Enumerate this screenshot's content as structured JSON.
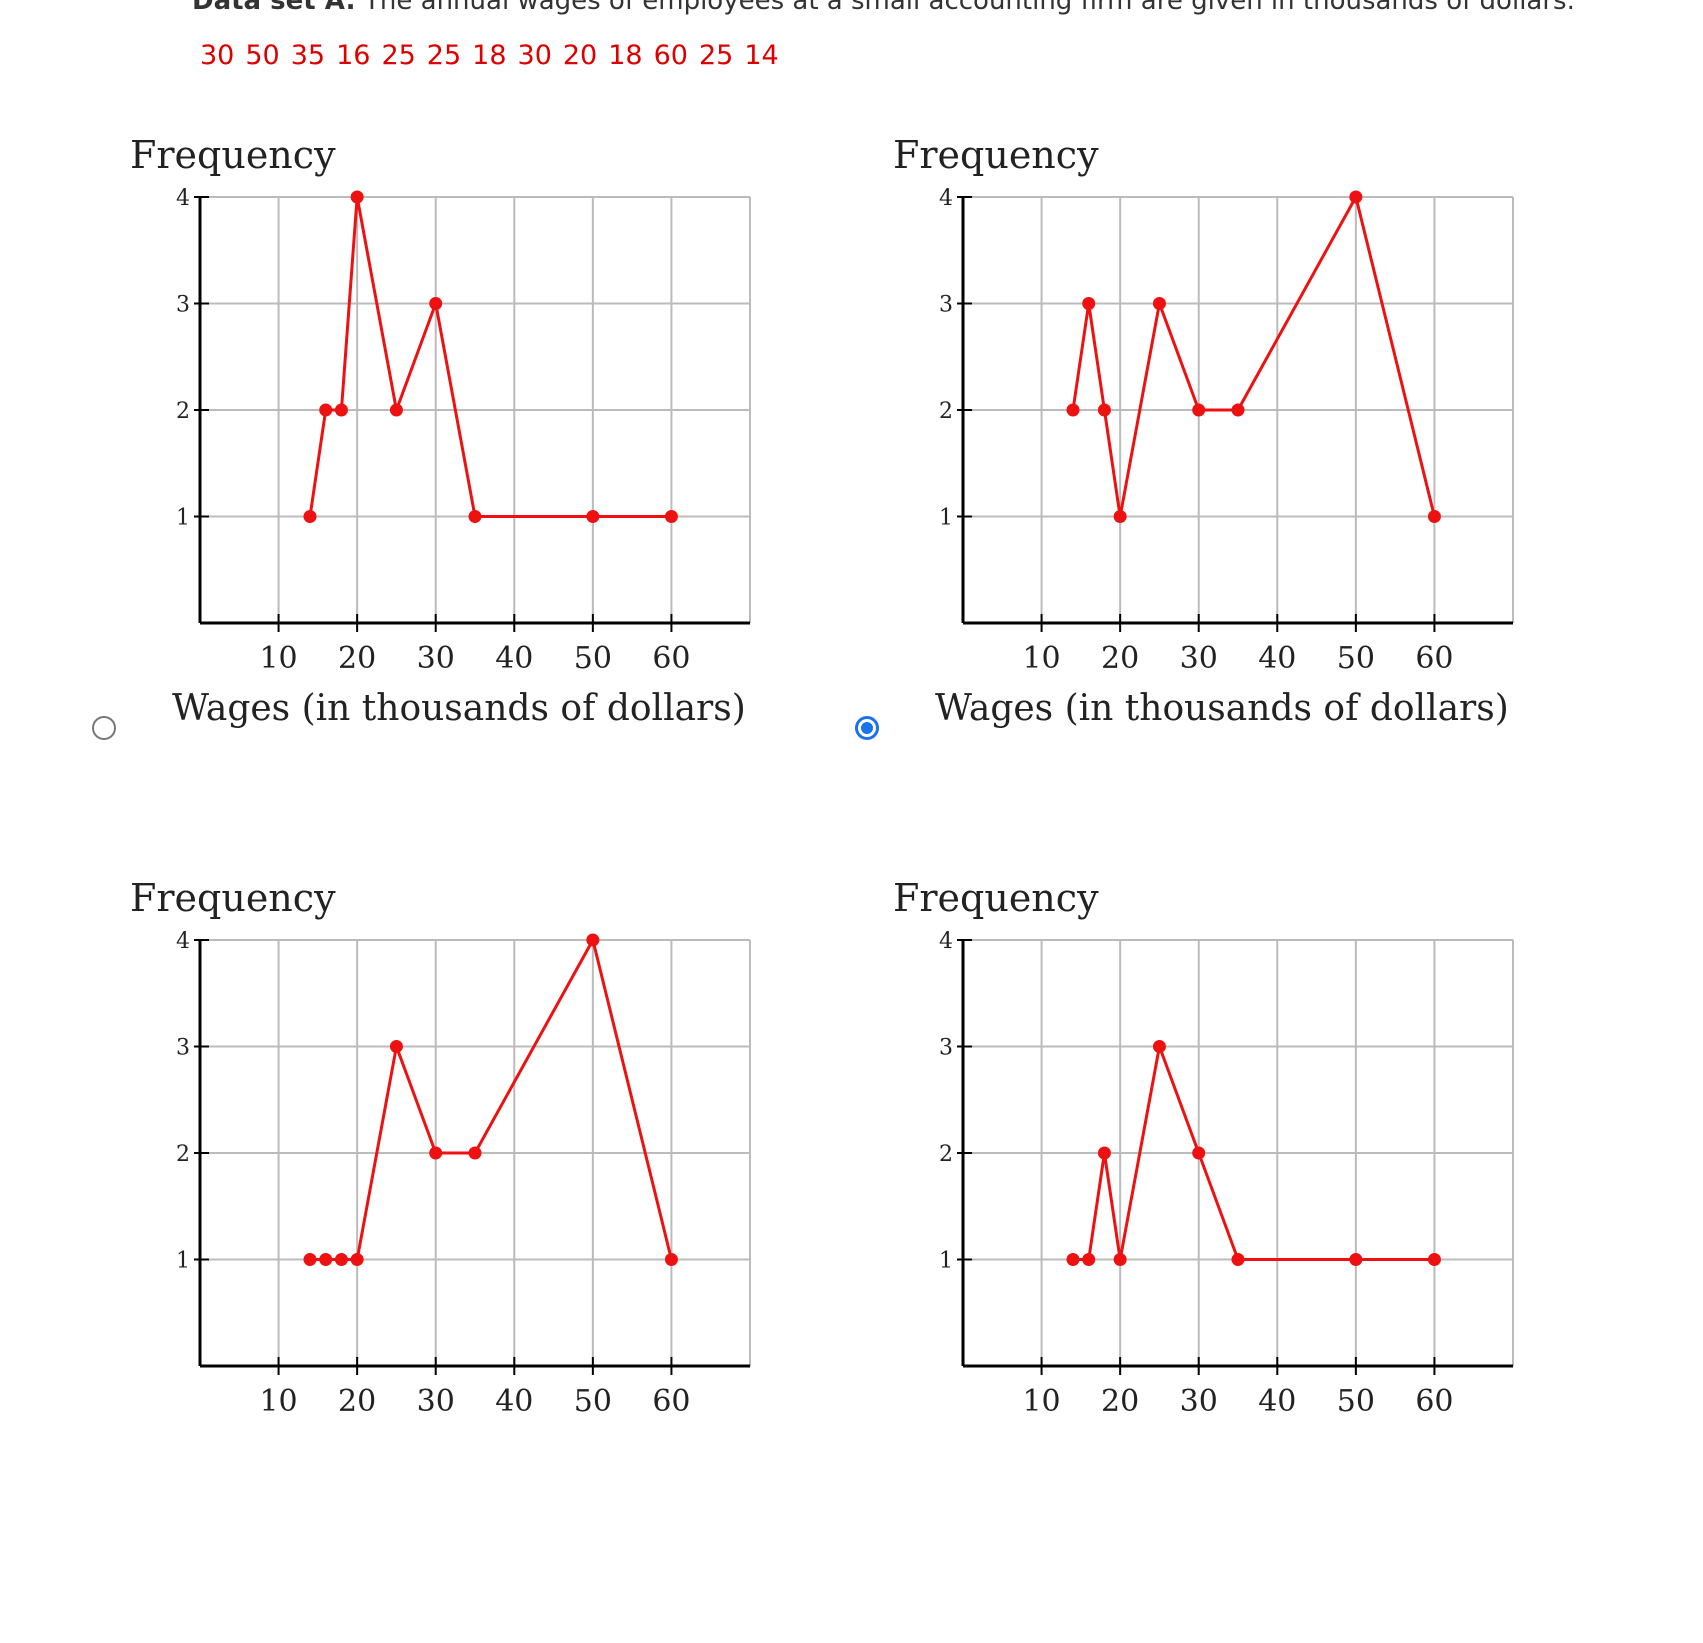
{
  "problem": {
    "label": "Data set A:",
    "text": "The annual wages of employees at a small accounting firm are given in thousands of dollars.",
    "values": [
      "30",
      "50",
      "35",
      "16",
      "25",
      "25",
      "18",
      "30",
      "20",
      "18",
      "60",
      "25",
      "14"
    ]
  },
  "selected_option": 2,
  "colors": {
    "line": "#ee1111",
    "grid": "#bbbbbb",
    "axis": "#000000",
    "radio": "#1a73e8"
  },
  "chart_data": [
    {
      "type": "line",
      "option": 1,
      "title": "",
      "ylabel": "Frequency",
      "xlabel": "Wages (in thousands of dollars)",
      "x_ticks": [
        10,
        20,
        30,
        40,
        50,
        60
      ],
      "y_ticks": [
        1,
        2,
        3,
        4
      ],
      "xlim": [
        0,
        70
      ],
      "ylim": [
        0,
        4
      ],
      "grid": true,
      "series": [
        {
          "x": [
            14,
            16,
            18,
            20,
            25,
            30,
            35,
            50,
            60
          ],
          "y": [
            1,
            2,
            2,
            4,
            2,
            3,
            1,
            1,
            1
          ]
        }
      ]
    },
    {
      "type": "line",
      "option": 2,
      "title": "",
      "ylabel": "Frequency",
      "xlabel": "Wages (in thousands of dollars)",
      "x_ticks": [
        10,
        20,
        30,
        40,
        50,
        60
      ],
      "y_ticks": [
        1,
        2,
        3,
        4
      ],
      "xlim": [
        0,
        70
      ],
      "ylim": [
        0,
        4
      ],
      "grid": true,
      "series": [
        {
          "x": [
            14,
            16,
            18,
            20,
            25,
            30,
            35,
            50,
            60
          ],
          "y": [
            2,
            3,
            2,
            1,
            3,
            2,
            2,
            4,
            1
          ]
        }
      ]
    },
    {
      "type": "line",
      "option": 3,
      "title": "",
      "ylabel": "Frequency",
      "xlabel": "",
      "x_ticks": [
        10,
        20,
        30,
        40,
        50,
        60
      ],
      "y_ticks": [
        1,
        2,
        3,
        4
      ],
      "xlim": [
        0,
        70
      ],
      "ylim": [
        0,
        4
      ],
      "grid": true,
      "series": [
        {
          "x": [
            14,
            16,
            18,
            20,
            25,
            30,
            35,
            50,
            60
          ],
          "y": [
            1,
            1,
            1,
            1,
            3,
            2,
            2,
            4,
            1
          ]
        }
      ]
    },
    {
      "type": "line",
      "option": 4,
      "title": "",
      "ylabel": "Frequency",
      "xlabel": "",
      "x_ticks": [
        10,
        20,
        30,
        40,
        50,
        60
      ],
      "y_ticks": [
        1,
        2,
        3,
        4
      ],
      "xlim": [
        0,
        70
      ],
      "ylim": [
        0,
        4
      ],
      "grid": true,
      "series": [
        {
          "x": [
            14,
            16,
            18,
            20,
            25,
            30,
            35,
            50,
            60
          ],
          "y": [
            1,
            1,
            2,
            1,
            3,
            2,
            1,
            1,
            1
          ]
        }
      ]
    }
  ]
}
